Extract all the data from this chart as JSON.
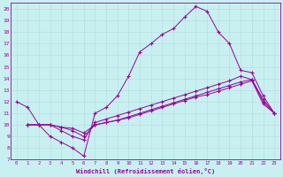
{
  "xlabel": "Windchill (Refroidissement éolien,°C)",
  "bg_color": "#c8f0f0",
  "line_color": "#990099",
  "grid_color": "#b8e0e0",
  "xlim": [
    -0.5,
    23.5
  ],
  "ylim": [
    7,
    20.5
  ],
  "xticks": [
    0,
    1,
    2,
    3,
    4,
    5,
    6,
    7,
    8,
    9,
    10,
    11,
    12,
    13,
    14,
    15,
    16,
    17,
    18,
    19,
    20,
    21,
    22,
    23
  ],
  "yticks": [
    7,
    8,
    9,
    10,
    11,
    12,
    13,
    14,
    15,
    16,
    17,
    18,
    19,
    20
  ],
  "lines": [
    {
      "x": [
        0,
        1,
        2,
        3,
        4,
        5,
        6,
        7,
        8,
        9,
        10,
        11,
        12,
        13,
        14,
        15,
        16,
        17,
        18,
        19,
        20,
        21,
        22,
        23
      ],
      "y": [
        12.0,
        11.5,
        10.0,
        9.0,
        8.5,
        8.0,
        7.3,
        11.0,
        11.5,
        12.5,
        14.2,
        16.3,
        17.0,
        17.8,
        18.3,
        19.3,
        20.2,
        19.8,
        18.0,
        17.0,
        14.7,
        14.5,
        12.5,
        11.0
      ]
    },
    {
      "x": [
        1,
        2,
        3,
        4,
        5,
        6,
        7,
        8,
        9,
        10,
        11,
        12,
        13,
        14,
        15,
        16,
        17,
        18,
        19,
        20,
        21,
        22,
        23
      ],
      "y": [
        10.0,
        10.0,
        10.0,
        9.5,
        9.0,
        8.7,
        10.2,
        10.5,
        10.8,
        11.1,
        11.4,
        11.7,
        12.0,
        12.3,
        12.6,
        12.9,
        13.2,
        13.5,
        13.8,
        14.2,
        13.9,
        12.2,
        11.0
      ]
    },
    {
      "x": [
        1,
        2,
        3,
        4,
        5,
        6,
        7,
        8,
        9,
        10,
        11,
        12,
        13,
        14,
        15,
        16,
        17,
        18,
        19,
        20,
        21,
        22,
        23
      ],
      "y": [
        10.0,
        10.0,
        10.0,
        9.8,
        9.5,
        9.0,
        10.0,
        10.2,
        10.4,
        10.7,
        11.0,
        11.3,
        11.6,
        11.9,
        12.2,
        12.5,
        12.8,
        13.1,
        13.4,
        13.7,
        13.9,
        12.0,
        11.0
      ]
    },
    {
      "x": [
        1,
        2,
        3,
        4,
        5,
        6,
        7,
        8,
        9,
        10,
        11,
        12,
        13,
        14,
        15,
        16,
        17,
        18,
        19,
        20,
        21,
        22,
        23
      ],
      "y": [
        10.0,
        10.0,
        10.0,
        9.8,
        9.7,
        9.3,
        10.0,
        10.2,
        10.4,
        10.6,
        10.9,
        11.2,
        11.5,
        11.8,
        12.1,
        12.4,
        12.6,
        12.9,
        13.2,
        13.5,
        13.8,
        11.8,
        11.0
      ]
    }
  ]
}
